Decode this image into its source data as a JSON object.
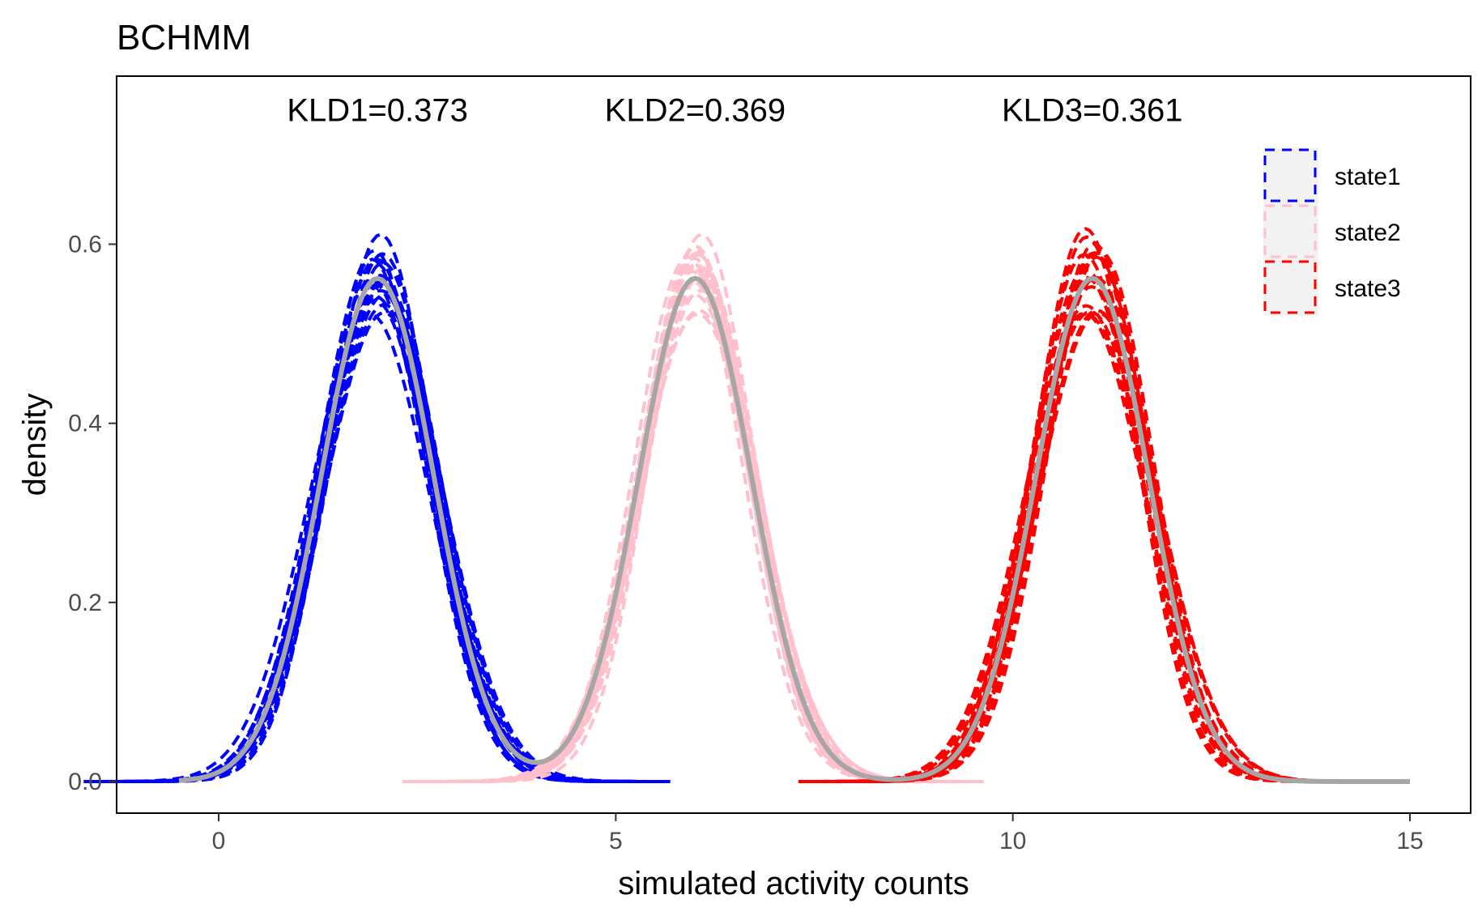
{
  "chart_data": {
    "type": "line",
    "title": "BCHMM",
    "xlabel": "simulated activity counts",
    "ylabel": "density",
    "xlim": [
      -0.5,
      15
    ],
    "ylim": [
      0,
      0.75
    ],
    "xticks": [
      0,
      5,
      10,
      15
    ],
    "xtick_labels": [
      "0",
      "5",
      "10",
      "15"
    ],
    "yticks": [
      0,
      0.2,
      0.4,
      0.6
    ],
    "ytick_labels": [
      "0.0",
      "0.2",
      "0.4",
      "0.6"
    ],
    "grid": false,
    "legend_placement": "top-right",
    "annotations": [
      {
        "text": "KLD1=0.373",
        "x": 2,
        "y": 0.75
      },
      {
        "text": "KLD2=0.369",
        "x": 6,
        "y": 0.75
      },
      {
        "text": "KLD3=0.361",
        "x": 11,
        "y": 0.75
      }
    ],
    "series": [
      {
        "name": "state1",
        "color": "#0000ff",
        "style": "dashed",
        "mean": 2,
        "sd": 0.71,
        "replicates": 20
      },
      {
        "name": "state2",
        "color": "#ffc0cb",
        "style": "dashed",
        "mean": 6,
        "sd": 0.71,
        "replicates": 20
      },
      {
        "name": "state3",
        "color": "#ff0000",
        "style": "dashed",
        "mean": 11,
        "sd": 0.71,
        "replicates": 20
      }
    ],
    "true_density": {
      "color": "#a6a6a6",
      "style": "solid",
      "means": [
        2,
        6,
        11
      ],
      "sd": 0.71,
      "peak": 0.56
    }
  }
}
